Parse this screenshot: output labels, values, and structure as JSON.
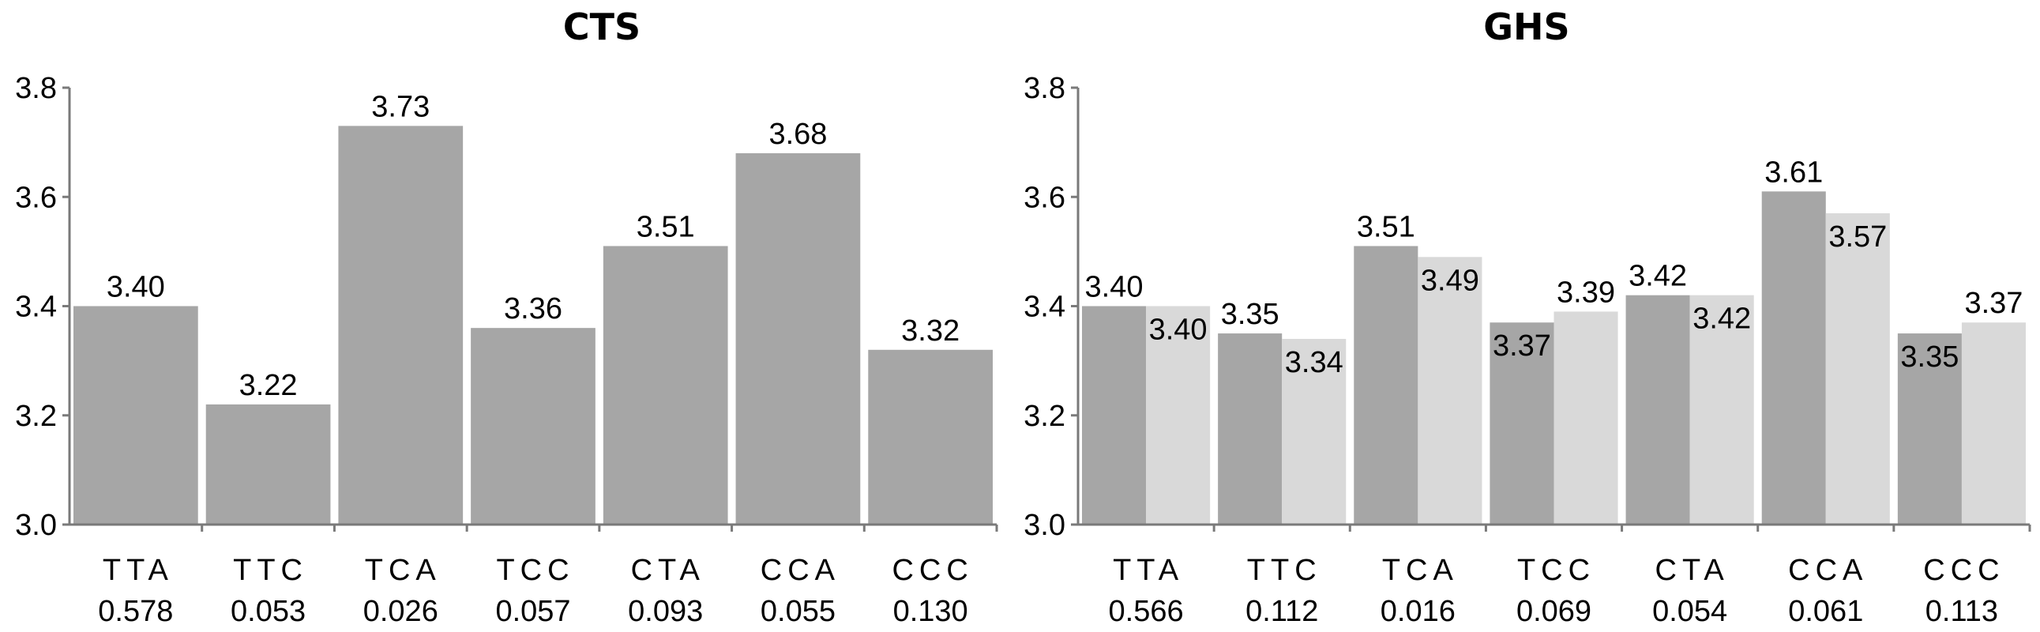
{
  "chart_data": [
    {
      "type": "bar",
      "title": "CTS",
      "ylim": [
        3.0,
        3.8
      ],
      "yticks": [
        "3.0",
        "3.2",
        "3.4",
        "3.6",
        "3.8"
      ],
      "grid": false,
      "categories": [
        "TTA",
        "TTC",
        "TCA",
        "TCC",
        "CTA",
        "CCA",
        "CCC"
      ],
      "category_values": [
        "0.578",
        "0.053",
        "0.026",
        "0.057",
        "0.093",
        "0.055",
        "0.130"
      ],
      "series": [
        {
          "color": "#a6a6a6",
          "values": [
            3.4,
            3.22,
            3.73,
            3.36,
            3.51,
            3.68,
            3.32
          ],
          "labels": [
            "3.40",
            "3.22",
            "3.73",
            "3.36",
            "3.51",
            "3.68",
            "3.32"
          ]
        }
      ]
    },
    {
      "type": "bar",
      "title": "GHS",
      "ylim": [
        3.0,
        3.8
      ],
      "yticks": [
        "3.0",
        "3.2",
        "3.4",
        "3.6",
        "3.8"
      ],
      "grid": false,
      "categories": [
        "TTA",
        "TTC",
        "TCA",
        "TCC",
        "CTA",
        "CCA",
        "CCC"
      ],
      "category_values": [
        "0.566",
        "0.112",
        "0.016",
        "0.069",
        "0.054",
        "0.061",
        "0.113"
      ],
      "series": [
        {
          "color": "#a6a6a6",
          "values": [
            3.4,
            3.35,
            3.51,
            3.37,
            3.42,
            3.61,
            3.35
          ],
          "labels": [
            "3.40",
            "3.35",
            "3.51",
            "3.37",
            "3.42",
            "3.61",
            "3.35"
          ]
        },
        {
          "color": "#d9d9d9",
          "values": [
            3.4,
            3.34,
            3.49,
            3.39,
            3.42,
            3.57,
            3.37
          ],
          "labels": [
            "3.40",
            "3.34",
            "3.49",
            "3.39",
            "3.42",
            "3.57",
            "3.37"
          ]
        }
      ]
    }
  ]
}
